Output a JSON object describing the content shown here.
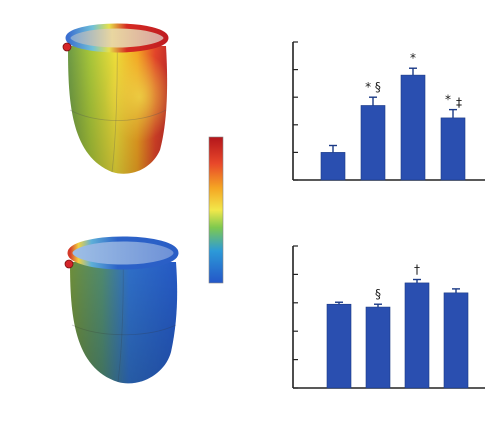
{
  "chart_data": [
    {
      "type": "bar",
      "title": "",
      "xlabel": "",
      "ylabel": "",
      "categories": [
        "",
        "",
        "",
        ""
      ],
      "values": [
        1.0,
        2.7,
        3.8,
        2.25
      ],
      "errors": [
        0.25,
        0.3,
        0.25,
        0.3
      ],
      "annotations": [
        "",
        "* §",
        "*",
        "* ‡"
      ],
      "ylim": [
        0,
        5
      ],
      "grid": false,
      "bar_color": "#2a4fb0"
    },
    {
      "type": "bar",
      "title": "",
      "xlabel": "",
      "ylabel": "",
      "categories": [
        "",
        "",
        "",
        ""
      ],
      "values": [
        2.95,
        2.85,
        3.7,
        3.35
      ],
      "errors": [
        0.07,
        0.1,
        0.12,
        0.14
      ],
      "annotations": [
        "",
        "§",
        "†",
        ""
      ],
      "ylim": [
        0,
        5
      ],
      "grid": false,
      "bar_color": "#2a4fb0"
    }
  ],
  "maps": [
    {
      "name": "top-heart-map",
      "dominant": "hot"
    },
    {
      "name": "bottom-heart-map",
      "dominant": "cool"
    }
  ],
  "colorbar": {
    "colors": [
      "#b3151b",
      "#e8472a",
      "#f5a623",
      "#f2e84a",
      "#7ec94f",
      "#2c9ad8",
      "#2456c8"
    ]
  }
}
